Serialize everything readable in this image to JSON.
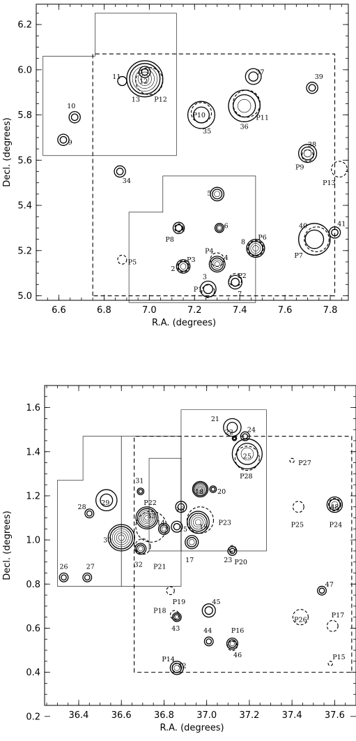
{
  "chart_data": [
    {
      "type": "scatter",
      "xlabel": "R.A. (degrees)",
      "ylabel": "Decl. (degrees)",
      "xlim": [
        6.5,
        7.88
      ],
      "ylim": [
        4.98,
        6.29
      ],
      "xticks": [
        "6.6",
        "6.8",
        "7.0",
        "7.2",
        "7.4",
        "7.6",
        "7.8"
      ],
      "xtick_values": [
        6.6,
        6.8,
        7.0,
        7.2,
        7.4,
        7.6,
        7.8
      ],
      "yticks": [
        "5.0",
        "5.2",
        "5.4",
        "5.6",
        "5.8",
        "6.0",
        "6.2"
      ],
      "ytick_values": [
        5.0,
        5.2,
        5.4,
        5.6,
        5.8,
        6.0,
        6.2
      ],
      "regions_solid": [
        [
          [
            6.53,
            5.62
          ],
          [
            6.53,
            6.06
          ],
          [
            6.76,
            6.06
          ],
          [
            6.76,
            6.25
          ],
          [
            7.12,
            6.25
          ],
          [
            7.12,
            5.62
          ]
        ],
        [
          [
            6.91,
            4.97
          ],
          [
            6.91,
            5.37
          ],
          [
            7.06,
            5.37
          ],
          [
            7.06,
            5.53
          ],
          [
            7.47,
            5.53
          ],
          [
            7.47,
            4.97
          ]
        ]
      ],
      "regions_dashed": [
        [
          [
            6.75,
            5.0
          ],
          [
            6.75,
            6.07
          ],
          [
            7.82,
            6.07
          ],
          [
            7.82,
            5.0
          ]
        ]
      ],
      "sources": [
        {
          "x": 6.62,
          "y": 5.69,
          "r": 0.025,
          "rings": 2,
          "label": "9",
          "lx": 6.65,
          "ly": 5.68
        },
        {
          "x": 6.67,
          "y": 5.79,
          "r": 0.025,
          "rings": 2,
          "label": "10",
          "lx": 6.655,
          "ly": 5.84
        },
        {
          "x": 6.88,
          "y": 5.95,
          "r": 0.02,
          "rings": 1,
          "label": "11",
          "lx": 6.855,
          "ly": 5.97
        },
        {
          "x": 6.98,
          "y": 5.96,
          "r": 0.08,
          "rings": 6,
          "label": "13",
          "lx": 6.94,
          "ly": 5.87
        },
        {
          "x": 6.98,
          "y": 5.99,
          "r": 0.025,
          "rings": 2,
          "label": "12",
          "lx": 6.975,
          "ly": 5.95
        },
        {
          "x": 6.87,
          "y": 5.55,
          "r": 0.025,
          "rings": 2,
          "label": "34",
          "lx": 6.9,
          "ly": 5.51
        },
        {
          "x": 7.23,
          "y": 5.8,
          "r": 0.06,
          "rings": 2,
          "label": "35",
          "lx": 7.255,
          "ly": 5.73
        },
        {
          "x": 7.42,
          "y": 5.84,
          "r": 0.07,
          "rings": 3,
          "label": "36",
          "lx": 7.42,
          "ly": 5.75
        },
        {
          "x": 7.46,
          "y": 5.97,
          "r": 0.035,
          "rings": 2,
          "label": "37",
          "lx": 7.49,
          "ly": 5.99
        },
        {
          "x": 7.72,
          "y": 5.92,
          "r": 0.025,
          "rings": 2,
          "label": "39",
          "lx": 7.75,
          "ly": 5.97
        },
        {
          "x": 7.7,
          "y": 5.63,
          "r": 0.04,
          "rings": 3,
          "label": "38",
          "lx": 7.72,
          "ly": 5.67
        },
        {
          "x": 7.3,
          "y": 5.45,
          "r": 0.03,
          "rings": 3,
          "label": "5",
          "lx": 7.265,
          "ly": 5.455
        },
        {
          "x": 7.13,
          "y": 5.3,
          "r": 0.025,
          "rings": 2,
          "label": "1",
          "lx": 7.15,
          "ly": 5.295
        },
        {
          "x": 7.31,
          "y": 5.3,
          "r": 0.02,
          "rings": 3,
          "label": "6",
          "lx": 7.34,
          "ly": 5.31
        },
        {
          "x": 7.47,
          "y": 5.21,
          "r": 0.04,
          "rings": 4,
          "label": "8",
          "lx": 7.415,
          "ly": 5.24
        },
        {
          "x": 7.73,
          "y": 5.25,
          "r": 0.07,
          "rings": 2,
          "label": "40",
          "lx": 7.68,
          "ly": 5.31
        },
        {
          "x": 7.82,
          "y": 5.28,
          "r": 0.025,
          "rings": 2,
          "label": "41",
          "lx": 7.85,
          "ly": 5.32
        },
        {
          "x": 7.15,
          "y": 5.13,
          "r": 0.03,
          "rings": 3,
          "label": "2",
          "lx": 7.105,
          "ly": 5.12
        },
        {
          "x": 7.3,
          "y": 5.14,
          "r": 0.035,
          "rings": 4,
          "label": "4",
          "lx": 7.34,
          "ly": 5.17
        },
        {
          "x": 7.26,
          "y": 5.03,
          "r": 0.035,
          "rings": 2,
          "label": "3",
          "lx": 7.245,
          "ly": 5.085
        },
        {
          "x": 7.38,
          "y": 5.06,
          "r": 0.03,
          "rings": 2,
          "label": "7",
          "lx": 7.4,
          "ly": 5.01
        }
      ],
      "candidates": [
        {
          "x": 7.0,
          "y": 5.95,
          "r": 0.06,
          "label": "P12",
          "lx": 7.05,
          "ly": 5.87
        },
        {
          "x": 7.23,
          "y": 5.81,
          "r": 0.045,
          "label": "P10",
          "lx": 7.22,
          "ly": 5.8
        },
        {
          "x": 7.43,
          "y": 5.85,
          "r": 0.06,
          "label": "P11",
          "lx": 7.5,
          "ly": 5.79
        },
        {
          "x": 7.7,
          "y": 5.62,
          "r": 0.025,
          "label": "P9",
          "lx": 7.665,
          "ly": 5.57
        },
        {
          "x": 7.84,
          "y": 5.56,
          "r": 0.035,
          "label": "P13",
          "lx": 7.795,
          "ly": 5.5
        },
        {
          "x": 6.88,
          "y": 5.16,
          "r": 0.02,
          "label": "P5",
          "lx": 6.925,
          "ly": 5.15
        },
        {
          "x": 7.13,
          "y": 5.3,
          "r": 0.018,
          "label": "P8",
          "lx": 7.09,
          "ly": 5.25
        },
        {
          "x": 7.47,
          "y": 5.21,
          "r": 0.035,
          "label": "P6",
          "lx": 7.5,
          "ly": 5.26
        },
        {
          "x": 7.74,
          "y": 5.25,
          "r": 0.055,
          "label": "P7",
          "lx": 7.66,
          "ly": 5.18
        },
        {
          "x": 7.15,
          "y": 5.13,
          "r": 0.025,
          "label": "P3",
          "lx": 7.185,
          "ly": 5.16
        },
        {
          "x": 7.3,
          "y": 5.16,
          "r": 0.03,
          "label": "P4",
          "lx": 7.265,
          "ly": 5.2
        },
        {
          "x": 7.26,
          "y": 5.02,
          "r": 0.028,
          "label": "P1",
          "lx": 7.215,
          "ly": 5.03
        },
        {
          "x": 7.38,
          "y": 5.07,
          "r": 0.028,
          "label": "P2",
          "lx": 7.41,
          "ly": 5.09
        }
      ]
    },
    {
      "type": "scatter",
      "xlabel": "R.A. (degrees)",
      "ylabel": "Decl. (degrees)",
      "xlim": [
        36.24,
        37.7
      ],
      "ylim": [
        0.25,
        1.7
      ],
      "xticks": [
        "36.4",
        "36.6",
        "36.8",
        "37.0",
        "37.2",
        "37.4",
        "37.6"
      ],
      "xtick_values": [
        36.4,
        36.6,
        36.8,
        37.0,
        37.2,
        37.4,
        37.6
      ],
      "yticks": [
        "0.2",
        "0.4",
        "0.6",
        "0.8",
        "1.0",
        "1.2",
        "1.4",
        "1.6"
      ],
      "ytick_values": [
        0.2,
        0.4,
        0.6,
        0.8,
        1.0,
        1.2,
        1.4,
        1.6
      ],
      "regions_solid": [
        [
          [
            36.3,
            0.79
          ],
          [
            36.3,
            1.27
          ],
          [
            36.42,
            1.27
          ],
          [
            36.42,
            1.47
          ],
          [
            36.6,
            1.47
          ],
          [
            36.6,
            0.79
          ]
        ],
        [
          [
            36.6,
            0.79
          ],
          [
            36.6,
            1.47
          ],
          [
            36.88,
            1.47
          ],
          [
            36.88,
            0.79
          ]
        ],
        [
          [
            36.73,
            0.95
          ],
          [
            36.73,
            1.37
          ],
          [
            36.88,
            1.37
          ],
          [
            36.88,
            0.95
          ]
        ],
        [
          [
            36.88,
            0.95
          ],
          [
            36.88,
            1.59
          ],
          [
            37.28,
            1.59
          ],
          [
            37.28,
            0.95
          ]
        ]
      ],
      "regions_dashed": [
        [
          [
            36.66,
            0.4
          ],
          [
            36.66,
            1.47
          ],
          [
            37.68,
            1.47
          ],
          [
            37.68,
            0.4
          ]
        ]
      ],
      "sources": [
        {
          "x": 36.33,
          "y": 0.83,
          "r": 0.02,
          "rings": 2,
          "label": "26",
          "lx": 36.33,
          "ly": 0.88
        },
        {
          "x": 36.44,
          "y": 0.83,
          "r": 0.02,
          "rings": 2,
          "label": "27",
          "lx": 36.455,
          "ly": 0.88
        },
        {
          "x": 36.45,
          "y": 1.12,
          "r": 0.02,
          "rings": 2,
          "label": "28",
          "lx": 36.415,
          "ly": 1.15
        },
        {
          "x": 36.53,
          "y": 1.18,
          "r": 0.048,
          "rings": 2,
          "label": "29",
          "lx": 36.525,
          "ly": 1.17
        },
        {
          "x": 36.69,
          "y": 1.22,
          "r": 0.015,
          "rings": 2,
          "label": "31",
          "lx": 36.685,
          "ly": 1.27
        },
        {
          "x": 36.6,
          "y": 1.01,
          "r": 0.06,
          "rings": 6,
          "label": "30",
          "lx": 36.535,
          "ly": 1.0
        },
        {
          "x": 36.72,
          "y": 1.1,
          "r": 0.05,
          "rings": 6,
          "label": "33",
          "lx": 36.74,
          "ly": 1.11
        },
        {
          "x": 36.69,
          "y": 0.96,
          "r": 0.025,
          "rings": 3,
          "label": "32",
          "lx": 36.68,
          "ly": 0.89
        },
        {
          "x": 36.8,
          "y": 1.05,
          "r": 0.025,
          "rings": 3,
          "label": "14",
          "lx": 36.785,
          "ly": 1.08
        },
        {
          "x": 36.86,
          "y": 1.06,
          "r": 0.025,
          "rings": 2,
          "label": "15",
          "lx": 36.89,
          "ly": 1.05
        },
        {
          "x": 36.88,
          "y": 1.15,
          "r": 0.025,
          "rings": 2,
          "label": "16",
          "lx": 36.875,
          "ly": 1.14
        },
        {
          "x": 36.97,
          "y": 1.23,
          "r": 0.035,
          "rings": 6,
          "label": "18",
          "lx": 36.965,
          "ly": 1.22
        },
        {
          "x": 37.03,
          "y": 1.23,
          "r": 0.015,
          "rings": 2,
          "label": "20",
          "lx": 37.07,
          "ly": 1.22
        },
        {
          "x": 36.96,
          "y": 1.08,
          "r": 0.05,
          "rings": 5,
          "label": "19",
          "lx": 36.985,
          "ly": 1.06
        },
        {
          "x": 36.93,
          "y": 0.99,
          "r": 0.03,
          "rings": 3,
          "label": "17",
          "lx": 36.92,
          "ly": 0.91
        },
        {
          "x": 37.12,
          "y": 0.95,
          "r": 0.02,
          "rings": 2,
          "label": "23",
          "lx": 37.1,
          "ly": 0.91
        },
        {
          "x": 37.12,
          "y": 1.51,
          "r": 0.04,
          "rings": 2,
          "label": "21",
          "lx": 37.04,
          "ly": 1.55
        },
        {
          "x": 37.13,
          "y": 1.46,
          "r": 0.01,
          "rings": 2,
          "label": "22",
          "lx": 37.105,
          "ly": 1.49
        },
        {
          "x": 37.18,
          "y": 1.47,
          "r": 0.02,
          "rings": 2,
          "label": "24",
          "lx": 37.21,
          "ly": 1.5
        },
        {
          "x": 37.19,
          "y": 1.39,
          "r": 0.068,
          "rings": 3,
          "label": "25",
          "lx": 37.19,
          "ly": 1.38
        },
        {
          "x": 37.6,
          "y": 1.16,
          "r": 0.035,
          "rings": 3,
          "label": "48",
          "lx": 37.6,
          "ly": 1.15
        },
        {
          "x": 37.54,
          "y": 0.77,
          "r": 0.02,
          "rings": 2,
          "label": "47",
          "lx": 37.575,
          "ly": 0.8
        },
        {
          "x": 36.86,
          "y": 0.65,
          "r": 0.02,
          "rings": 3,
          "label": "43",
          "lx": 36.855,
          "ly": 0.6
        },
        {
          "x": 37.01,
          "y": 0.68,
          "r": 0.03,
          "rings": 2,
          "label": "45",
          "lx": 37.045,
          "ly": 0.72
        },
        {
          "x": 37.01,
          "y": 0.54,
          "r": 0.02,
          "rings": 2,
          "label": "44",
          "lx": 37.005,
          "ly": 0.59
        },
        {
          "x": 37.12,
          "y": 0.53,
          "r": 0.025,
          "rings": 3,
          "label": "46",
          "lx": 37.145,
          "ly": 0.48
        },
        {
          "x": 36.86,
          "y": 0.42,
          "r": 0.03,
          "rings": 3,
          "label": "42",
          "lx": 36.885,
          "ly": 0.43
        }
      ],
      "candidates": [
        {
          "x": 36.74,
          "y": 1.06,
          "r": 0.07,
          "label": "P22",
          "lx": 36.735,
          "ly": 1.17
        },
        {
          "x": 36.7,
          "y": 0.97,
          "r": 0.035,
          "label": "P21",
          "lx": 36.78,
          "ly": 0.88
        },
        {
          "x": 36.97,
          "y": 1.09,
          "r": 0.06,
          "label": "P23",
          "lx": 37.085,
          "ly": 1.08
        },
        {
          "x": 37.19,
          "y": 1.37,
          "r": 0.055,
          "label": "P28",
          "lx": 37.185,
          "ly": 1.29
        },
        {
          "x": 37.4,
          "y": 1.36,
          "r": 0.01,
          "label": "P27",
          "lx": 37.46,
          "ly": 1.35
        },
        {
          "x": 37.43,
          "y": 1.15,
          "r": 0.025,
          "label": "P25",
          "lx": 37.425,
          "ly": 1.07
        },
        {
          "x": 37.6,
          "y": 1.16,
          "r": 0.028,
          "label": "P24",
          "lx": 37.605,
          "ly": 1.07
        },
        {
          "x": 37.12,
          "y": 0.96,
          "r": 0.015,
          "label": "P20",
          "lx": 37.16,
          "ly": 0.9
        },
        {
          "x": 36.83,
          "y": 0.77,
          "r": 0.018,
          "label": "P19",
          "lx": 36.87,
          "ly": 0.72
        },
        {
          "x": 36.85,
          "y": 0.66,
          "r": 0.02,
          "label": "P18",
          "lx": 36.78,
          "ly": 0.68
        },
        {
          "x": 37.44,
          "y": 0.65,
          "r": 0.035,
          "label": "P26",
          "lx": 37.44,
          "ly": 0.64
        },
        {
          "x": 37.59,
          "y": 0.61,
          "r": 0.025,
          "label": "P17",
          "lx": 37.615,
          "ly": 0.66
        },
        {
          "x": 37.12,
          "y": 0.52,
          "r": 0.022,
          "label": "P16",
          "lx": 37.145,
          "ly": 0.59
        },
        {
          "x": 36.86,
          "y": 0.42,
          "r": 0.02,
          "label": "P14",
          "lx": 36.82,
          "ly": 0.46
        },
        {
          "x": 37.58,
          "y": 0.44,
          "r": 0.01,
          "label": "P15",
          "lx": 37.62,
          "ly": 0.47
        }
      ]
    }
  ]
}
